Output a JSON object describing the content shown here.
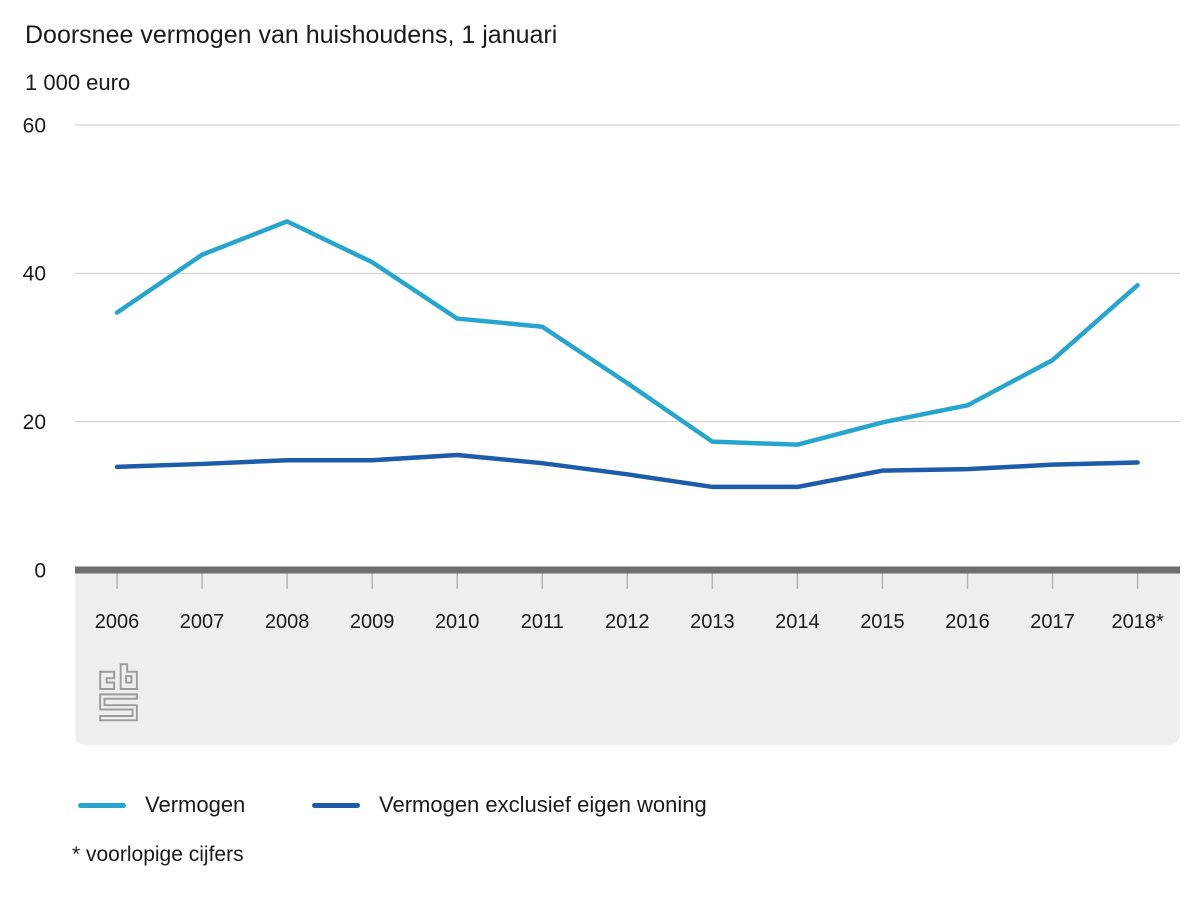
{
  "title": "Doorsnee vermogen van huishoudens, 1 januari",
  "subtitle": "1 000 euro",
  "footnote": "* voorlopige cijfers",
  "legend": {
    "items": [
      {
        "label": "Vermogen",
        "color": "#26a6ce"
      },
      {
        "label": "Vermogen exclusief eigen woning",
        "color": "#1d5cab"
      }
    ]
  },
  "logo": {
    "name": "cbs-logo"
  },
  "colors": {
    "text": "#1a1a1a",
    "gridline": "#cccccc",
    "axis_bar": "#6e6e6e",
    "tick": "#b5b5b5",
    "plot_footer_bg": "#eeeeee",
    "logo_stroke": "#9c9c9c"
  },
  "chart_data": {
    "type": "line",
    "title": "Doorsnee vermogen van huishoudens, 1 januari",
    "ylabel": "1 000 euro",
    "categories": [
      "2006",
      "2007",
      "2008",
      "2009",
      "2010",
      "2011",
      "2012",
      "2013",
      "2014",
      "2015",
      "2016",
      "2017",
      "2018*"
    ],
    "series": [
      {
        "name": "Vermogen",
        "color": "#26a6ce",
        "values": [
          34.7,
          42.5,
          47.0,
          41.5,
          33.9,
          32.8,
          25.2,
          17.3,
          16.9,
          19.9,
          22.2,
          28.3,
          38.4
        ]
      },
      {
        "name": "Vermogen exclusief eigen woning",
        "color": "#1d5cab",
        "values": [
          13.9,
          14.3,
          14.8,
          14.8,
          15.5,
          14.4,
          12.9,
          11.2,
          11.2,
          13.4,
          13.6,
          14.2,
          14.5
        ]
      }
    ],
    "ylim": [
      0,
      60
    ],
    "yticks": [
      60,
      40,
      20,
      0
    ],
    "grid": true,
    "legend_position": "bottom",
    "footnote": "* voorlopige cijfers"
  }
}
